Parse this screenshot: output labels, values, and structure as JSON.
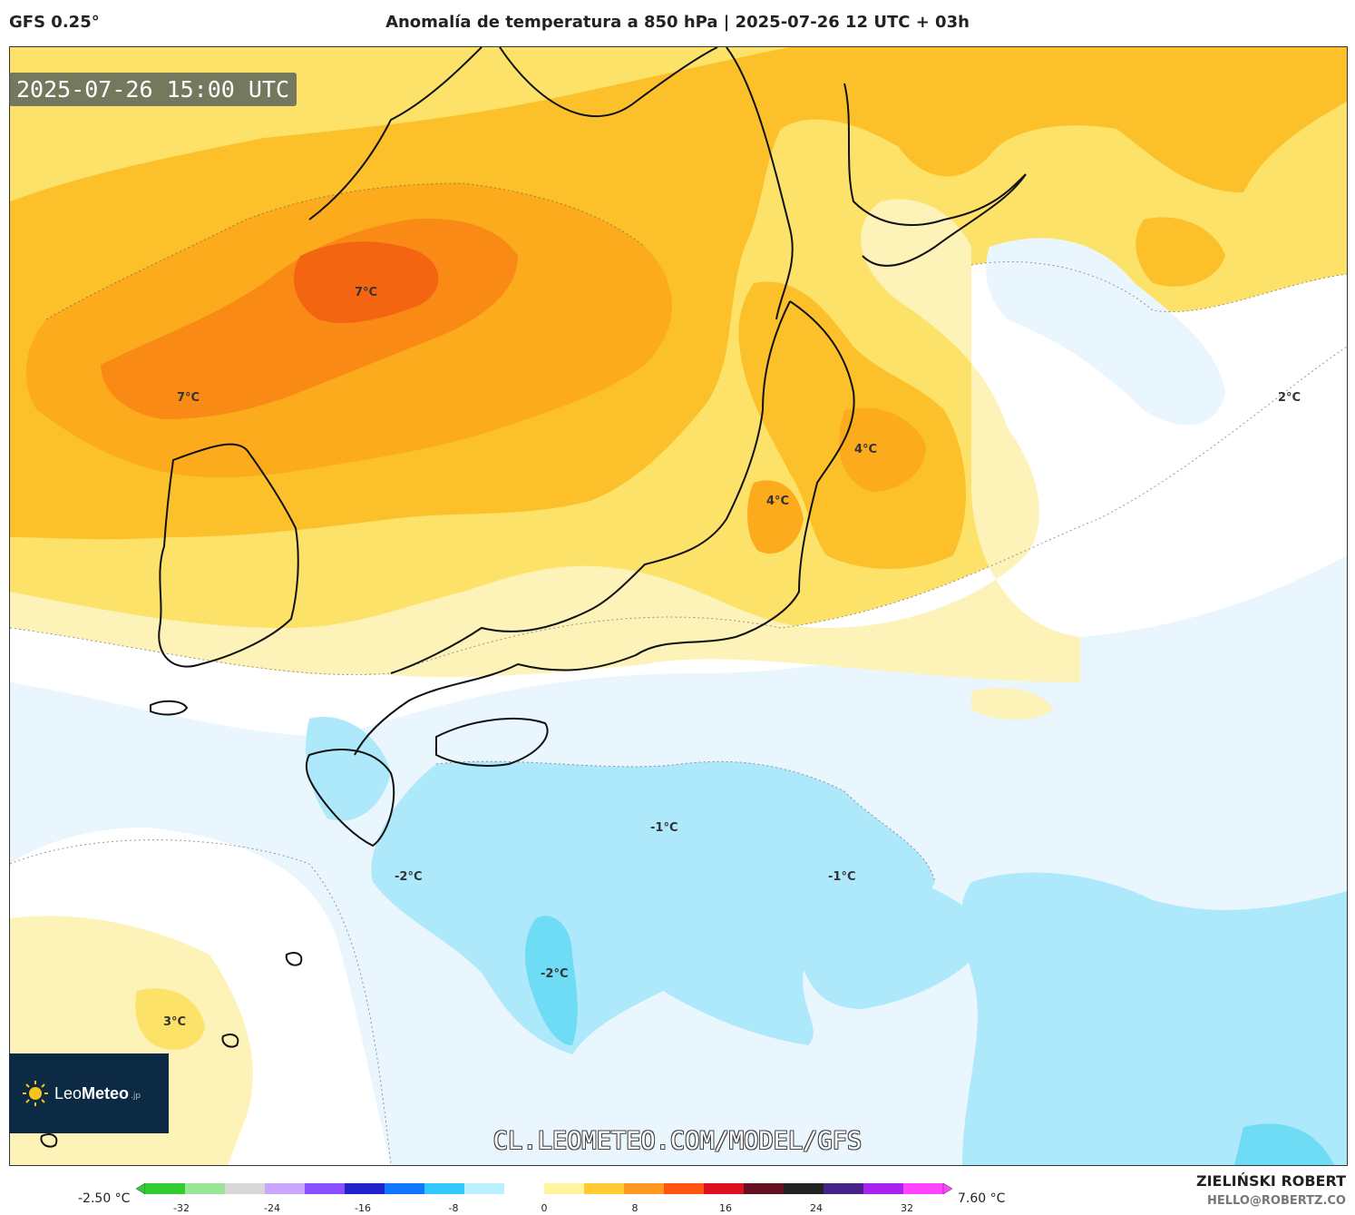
{
  "header": {
    "model": "GFS 0.25°",
    "title": "Anomalía de temperatura a 850 hPa | 2025-07-26 12 UTC + 03h"
  },
  "map": {
    "timestamp": "2025-07-26 15:00 UTC",
    "watermark_url": "CL.LEOMETEO.COM/MODEL/GFS",
    "labels": [
      "7°C",
      "7°C",
      "4°C",
      "4°C",
      "2°C",
      "-1°C",
      "-1°C",
      "-2°C",
      "-2°C",
      "3°C"
    ],
    "colors": {
      "pale_yellow": "#fdf2b8",
      "yellow": "#fde26a",
      "gold": "#fcc12a",
      "orange": "#fbab1c",
      "dark_orange": "#f98a15",
      "red_orange": "#f46512",
      "white": "#ffffff",
      "pale_blue": "#eaf6fd",
      "light_blue": "#aee9fb",
      "cyan": "#6fdcf5"
    }
  },
  "logo": {
    "brand_light": "Leo",
    "brand_bold": "Meteo",
    "suffix": ".jp"
  },
  "colorbar": {
    "min_label": "-2.50 °C",
    "max_label": "7.60 °C",
    "ticks": [
      "-32",
      "-24",
      "-16",
      "-8",
      "0",
      "8",
      "16",
      "24",
      "32"
    ],
    "colors": [
      "#33cc33",
      "#99e699",
      "#d8d8d8",
      "#c9a6ff",
      "#8a4dff",
      "#2222cc",
      "#1177ff",
      "#33c7ff",
      "#b8f0ff",
      "#ffffff",
      "#fff4a0",
      "#ffcc33",
      "#ff9922",
      "#ff5511",
      "#dd1122",
      "#661122",
      "#222222",
      "#442288",
      "#aa22ee",
      "#ff44ff"
    ]
  },
  "credits": {
    "author": "ZIELIŃSKI ROBERT",
    "email": "HELLO@ROBERTZ.CO"
  }
}
